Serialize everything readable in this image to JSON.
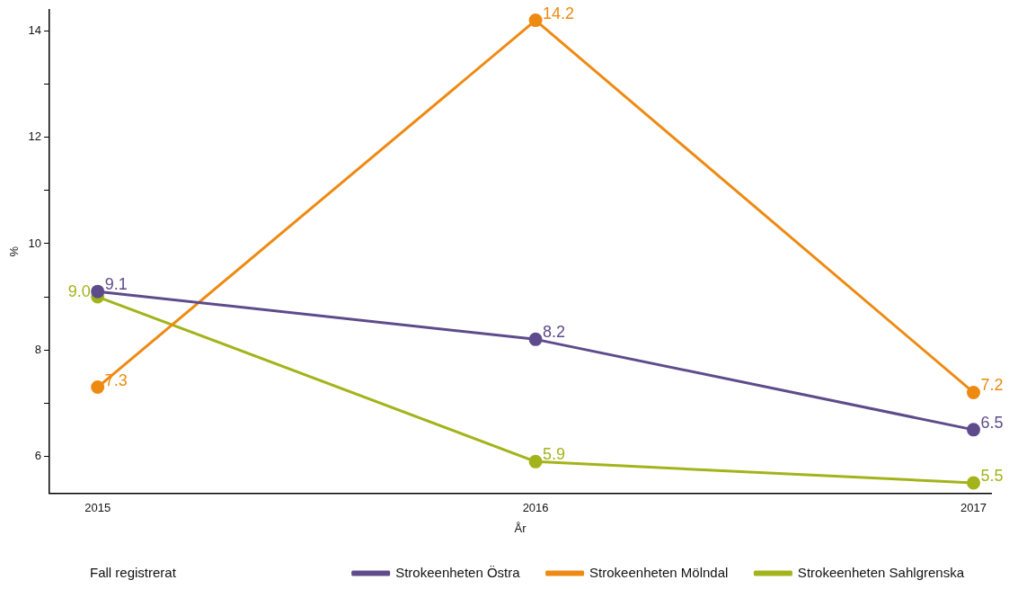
{
  "chart_data": {
    "type": "line",
    "xlabel": "År",
    "ylabel": "%",
    "legend_title": "Fall registrerat",
    "legend": "bottom",
    "grid": false,
    "marker": "circle",
    "line_style": "solid",
    "x": [
      2015,
      2016,
      2017
    ],
    "xlim": [
      2014.89,
      2017.04
    ],
    "xticks": [
      2015,
      2016,
      2017
    ],
    "ylim": [
      5.3,
      14.4
    ],
    "yticks": [
      6,
      {
        "value": 7,
        "label": null
      },
      8,
      {
        "value": 9,
        "label": null
      },
      10,
      {
        "value": 11,
        "label": null
      },
      12,
      {
        "value": 13,
        "label": null
      },
      14
    ],
    "series": [
      {
        "name": "Strokeenheten Östra",
        "color": "#5e4b8b",
        "values": [
          9.1,
          8.2,
          6.5
        ],
        "value_labels": [
          "9.1",
          "8.2",
          "6.5"
        ]
      },
      {
        "name": "Strokeenheten Mölndal",
        "color": "#ee8a12",
        "values": [
          7.3,
          14.2,
          7.2
        ],
        "value_labels": [
          "7.3",
          "14.2",
          "7.2"
        ]
      },
      {
        "name": "Strokeenheten Sahlgrenska",
        "color": "#a3b31a",
        "values": [
          9.0,
          5.9,
          5.5
        ],
        "value_labels": [
          "9.0",
          "5.9",
          "5.5"
        ]
      }
    ]
  }
}
